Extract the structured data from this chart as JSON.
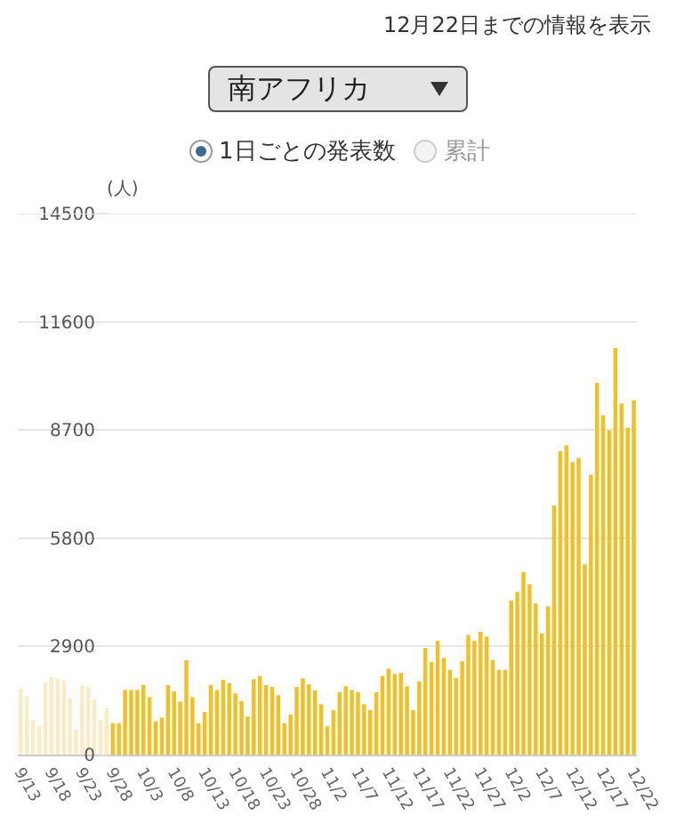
{
  "chart_data": {
    "type": "bar",
    "ylabel": "(人)",
    "annotations": [
      "12月22日までの情報を表示",
      "南アフリカ",
      "1日ごとの発表数",
      "累計"
    ],
    "categories": [
      "9/13",
      null,
      null,
      null,
      null,
      "9/18",
      null,
      null,
      null,
      null,
      "9/23",
      null,
      null,
      null,
      null,
      "9/28",
      null,
      null,
      null,
      null,
      "10/3",
      null,
      null,
      null,
      null,
      "10/8",
      null,
      null,
      null,
      null,
      "10/13",
      null,
      null,
      null,
      null,
      "10/18",
      null,
      null,
      null,
      null,
      "10/23",
      null,
      null,
      null,
      null,
      "10/28",
      null,
      null,
      null,
      null,
      "11/2",
      null,
      null,
      null,
      null,
      "11/7",
      null,
      null,
      null,
      null,
      "11/12",
      null,
      null,
      null,
      null,
      "11/17",
      null,
      null,
      null,
      null,
      "11/22",
      null,
      null,
      null,
      null,
      "11/27",
      null,
      null,
      null,
      null,
      "12/2",
      null,
      null,
      null,
      null,
      "12/7",
      null,
      null,
      null,
      null,
      "12/12",
      null,
      null,
      null,
      null,
      "12/17",
      null,
      null,
      null,
      null,
      "12/22"
    ],
    "values": [
      1770,
      1560,
      930,
      760,
      1930,
      2080,
      2040,
      1990,
      1510,
      680,
      1830,
      1830,
      1480,
      920,
      1240,
      840,
      840,
      1730,
      1730,
      1730,
      1860,
      1540,
      890,
      990,
      1860,
      1690,
      1420,
      2530,
      1540,
      840,
      1140,
      1860,
      1730,
      2000,
      1920,
      1640,
      1430,
      1020,
      2020,
      2110,
      1860,
      1810,
      1590,
      840,
      1070,
      1810,
      2040,
      1880,
      1720,
      1350,
      760,
      1190,
      1670,
      1830,
      1730,
      1670,
      1350,
      1190,
      1670,
      2110,
      2300,
      2160,
      2190,
      1830,
      1190,
      1960,
      2860,
      2480,
      3050,
      2590,
      2270,
      2050,
      2500,
      3210,
      3050,
      3290,
      3160,
      2530,
      2270,
      2270,
      4130,
      4360,
      4890,
      4570,
      4050,
      3250,
      3970,
      6680,
      8130,
      8290,
      7840,
      7950,
      5100,
      7500,
      9960,
      9090,
      8690,
      10900,
      9410,
      8760,
      9490
    ],
    "colors": [
      "#f8ecc4",
      "#f8ecc4",
      "#f8ecc4",
      "#f8ecc4",
      "#f8ecc4",
      "#f8ecc4",
      "#f8ecc4",
      "#f8ecc4",
      "#f8ecc4",
      "#f8ecc4",
      "#f8ecc4",
      "#f8ecc4",
      "#f8ecc4",
      "#f8ecc4",
      "#f8ecc4",
      "#f2bf24",
      "#f2bf24",
      "#f2bf24",
      "#f2bf24",
      "#f2bf24",
      "#f2bf24",
      "#f2bf24",
      "#f2bf24",
      "#f2bf24",
      "#f2bf24",
      "#f2bf24",
      "#f2bf24",
      "#f2bf24",
      "#f2bf24",
      "#f2bf24",
      "#f2bf24",
      "#f2bf24",
      "#f2bf24",
      "#f2bf24",
      "#f2bf24",
      "#f2bf24",
      "#f2bf24",
      "#f2bf24",
      "#f2bf24",
      "#f2bf24",
      "#f2bf24",
      "#f2bf24",
      "#f2bf24",
      "#f2bf24",
      "#f2bf24",
      "#f2bf24",
      "#f2bf24",
      "#f2bf24",
      "#f2bf24",
      "#f2bf24",
      "#f2bf24",
      "#f2bf24",
      "#f2bf24",
      "#f2bf24",
      "#f2bf24",
      "#f2bf24",
      "#f2bf24",
      "#f2bf24",
      "#f2bf24",
      "#f2bf24",
      "#f2bf24",
      "#f2bf24",
      "#f2bf24",
      "#f2bf24",
      "#f2bf24",
      "#f2bf24",
      "#f2bf24",
      "#f2bf24",
      "#f2bf24",
      "#f2bf24",
      "#f2bf24",
      "#f2bf24",
      "#f2bf24",
      "#f2bf24",
      "#f2bf24",
      "#f2bf24",
      "#f2bf24",
      "#f2bf24",
      "#f2bf24",
      "#f2bf24",
      "#f2bf24",
      "#f2bf24",
      "#f2bf24",
      "#f2bf24",
      "#f2bf24",
      "#f2bf24",
      "#f2bf24",
      "#f2bf24",
      "#f2bf24",
      "#f2bf24",
      "#f2bf24",
      "#f2bf24",
      "#f2bf24",
      "#f2bf24",
      "#f2bf24",
      "#f2bf24",
      "#f2bf24",
      "#f2bf24",
      "#f2bf24",
      "#f2bf24",
      "#f2bf24"
    ],
    "ylim": [
      0,
      14500
    ],
    "yticks": [
      0,
      2900,
      5800,
      8700,
      11600,
      14500
    ],
    "grid": "y"
  }
}
